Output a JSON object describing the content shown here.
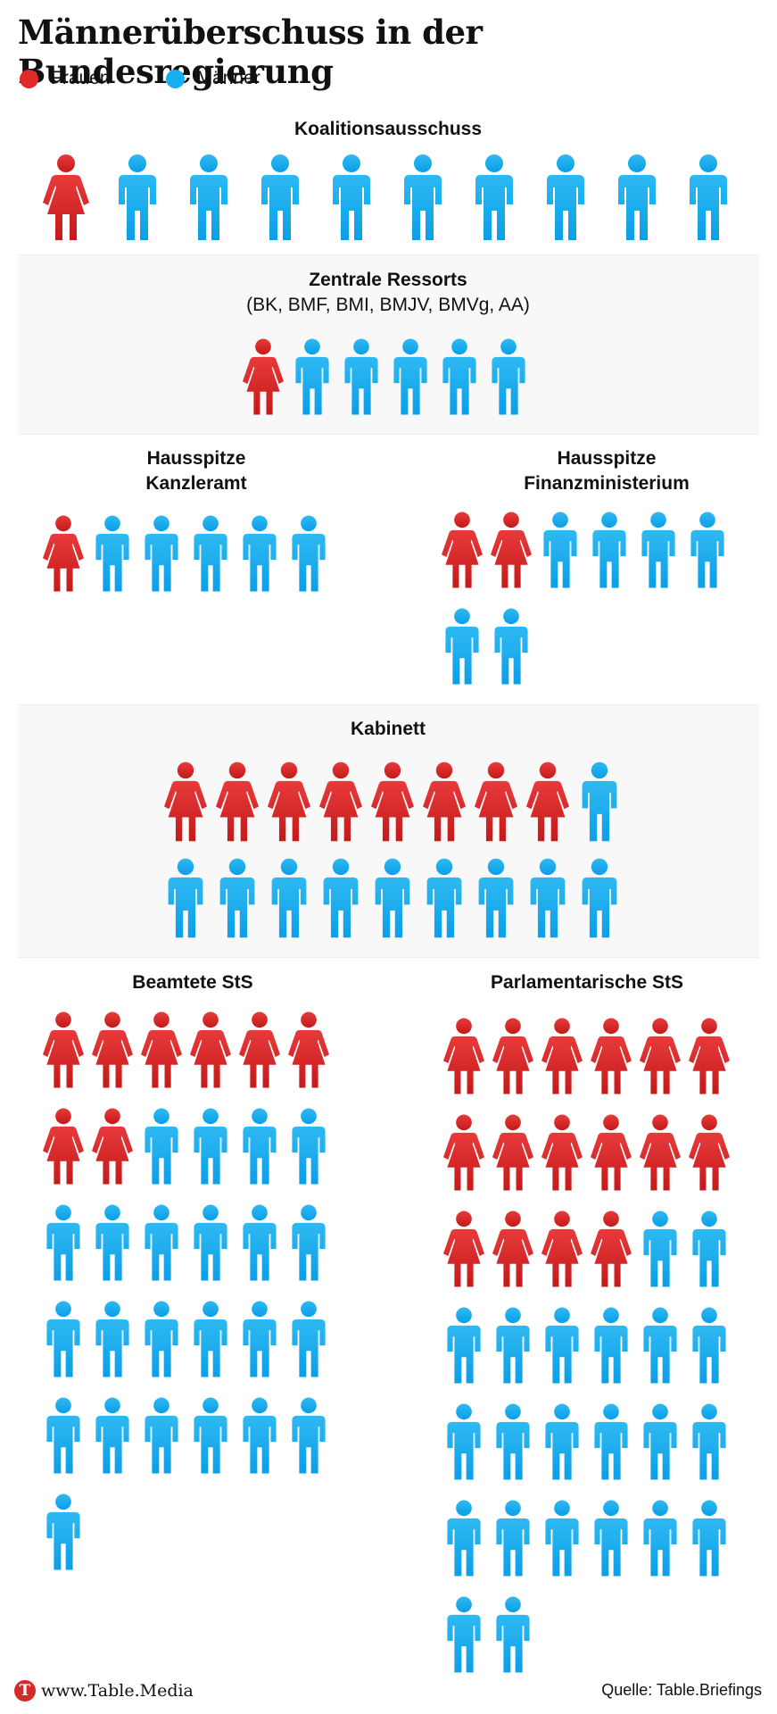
{
  "title": "Männerüberschuss in der Bundesregierung",
  "legend": {
    "women_label": "Frauen",
    "men_label": "Männer",
    "women_color": "#e02a2a",
    "men_color": "#18aef0"
  },
  "chart_data": {
    "type": "pictogram",
    "title": "Männerüberschuss in der Bundesregierung",
    "series": [
      {
        "name": "Frauen",
        "color": "#e02a2a"
      },
      {
        "name": "Männer",
        "color": "#18aef0"
      }
    ],
    "groups": [
      {
        "title": "Koalitionsausschuss",
        "subtitle": "",
        "women": 1,
        "men": 9
      },
      {
        "title": "Zentrale Ressorts",
        "subtitle": "(BK, BMF, BMI, BMJV, BMVg, AA)",
        "women": 1,
        "men": 5
      },
      {
        "title": "Hausspitze Kanzleramt",
        "subtitle": "",
        "women": 1,
        "men": 5
      },
      {
        "title": "Hausspitze Finanzministerium",
        "subtitle": "",
        "women": 2,
        "men": 6
      },
      {
        "title": "Kabinett",
        "subtitle": "",
        "women": 8,
        "men": 10
      },
      {
        "title": "Beamtete StS",
        "subtitle": "",
        "women": 8,
        "men": 23
      },
      {
        "title": "Parlamentarische StS",
        "subtitle": "",
        "women": 16,
        "men": 22
      }
    ]
  },
  "footer": {
    "logo_letter": "T",
    "site": "www.Table.Media",
    "source": "Quelle: Table.Briefings"
  }
}
